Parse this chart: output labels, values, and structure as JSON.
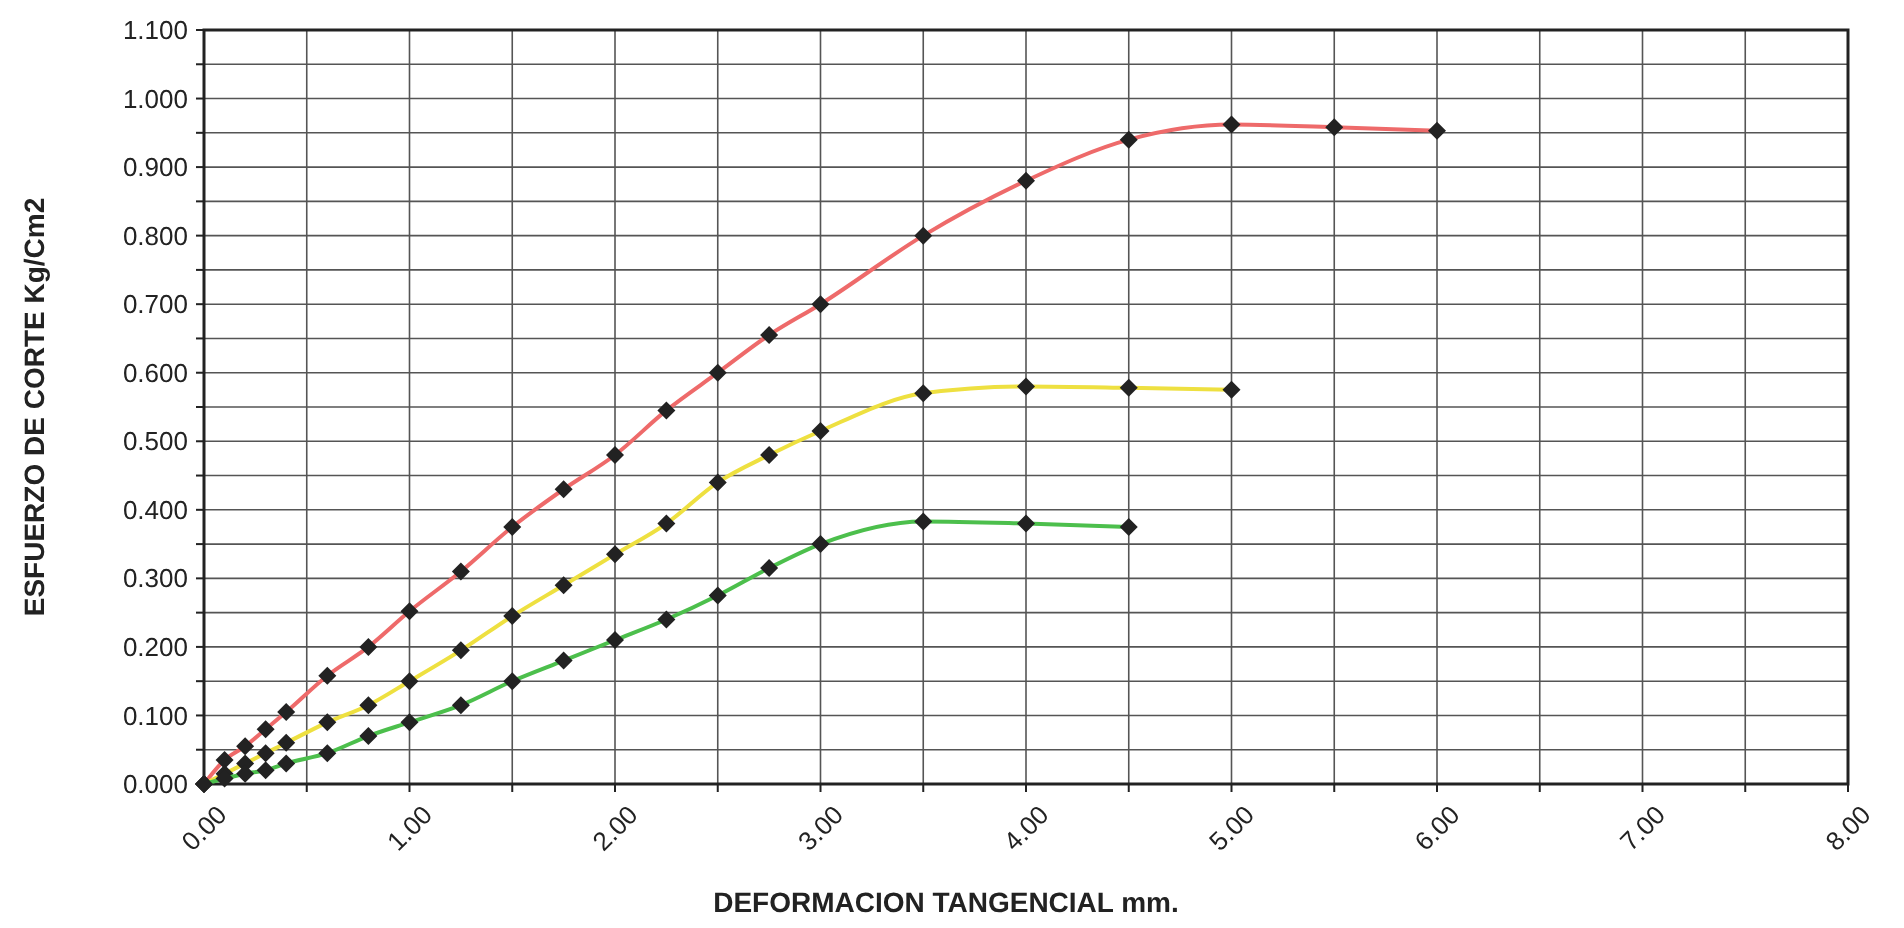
{
  "chart_data": {
    "type": "line",
    "xlabel": "DEFORMACION TANGENCIAL mm.",
    "ylabel": "ESFUERZO DE CORTE Kg/Cm2",
    "xlim": [
      0,
      8
    ],
    "ylim": [
      0,
      1.1
    ],
    "xticks": [
      {
        "value": 0,
        "label": "0.00"
      },
      {
        "value": 0.5,
        "label": null
      },
      {
        "value": 1,
        "label": "1.00"
      },
      {
        "value": 1.5,
        "label": null
      },
      {
        "value": 2,
        "label": "2.00"
      },
      {
        "value": 2.5,
        "label": null
      },
      {
        "value": 3,
        "label": "3.00"
      },
      {
        "value": 3.5,
        "label": null
      },
      {
        "value": 4,
        "label": "4.00"
      },
      {
        "value": 4.5,
        "label": null
      },
      {
        "value": 5,
        "label": "5.00"
      },
      {
        "value": 5.5,
        "label": null
      },
      {
        "value": 6,
        "label": "6.00"
      },
      {
        "value": 6.5,
        "label": null
      },
      {
        "value": 7,
        "label": "7.00"
      },
      {
        "value": 7.5,
        "label": null
      },
      {
        "value": 8,
        "label": "8.00"
      }
    ],
    "yticks": [
      {
        "value": 0,
        "label": "0.000"
      },
      {
        "value": 0.05,
        "label": null
      },
      {
        "value": 0.1,
        "label": "0.100"
      },
      {
        "value": 0.15,
        "label": null
      },
      {
        "value": 0.2,
        "label": "0.200"
      },
      {
        "value": 0.25,
        "label": null
      },
      {
        "value": 0.3,
        "label": "0.300"
      },
      {
        "value": 0.35,
        "label": null
      },
      {
        "value": 0.4,
        "label": "0.400"
      },
      {
        "value": 0.45,
        "label": null
      },
      {
        "value": 0.5,
        "label": "0.500"
      },
      {
        "value": 0.55,
        "label": null
      },
      {
        "value": 0.6,
        "label": "0.600"
      },
      {
        "value": 0.65,
        "label": null
      },
      {
        "value": 0.7,
        "label": "0.700"
      },
      {
        "value": 0.75,
        "label": null
      },
      {
        "value": 0.8,
        "label": "0.800"
      },
      {
        "value": 0.85,
        "label": null
      },
      {
        "value": 0.9,
        "label": "0.900"
      },
      {
        "value": 0.95,
        "label": null
      },
      {
        "value": 1,
        "label": "1.000"
      },
      {
        "value": 1.05,
        "label": null
      },
      {
        "value": 1.1,
        "label": "1.100"
      }
    ],
    "grid": true,
    "marker": "diamond",
    "line_style": "solid",
    "series": [
      {
        "color": "#ee6a6a",
        "x": [
          0,
          0.1,
          0.2,
          0.3,
          0.4,
          0.6,
          0.8,
          1,
          1.25,
          1.5,
          1.75,
          2,
          2.25,
          2.5,
          2.75,
          3,
          3.5,
          4,
          4.5,
          5,
          5.5,
          6
        ],
        "values": [
          0,
          0.035,
          0.055,
          0.08,
          0.105,
          0.158,
          0.2,
          0.252,
          0.31,
          0.375,
          0.43,
          0.48,
          0.545,
          0.6,
          0.655,
          0.7,
          0.8,
          0.88,
          0.94,
          0.962,
          0.958,
          0.953
        ]
      },
      {
        "color": "#eee040",
        "x": [
          0,
          0.1,
          0.2,
          0.3,
          0.4,
          0.6,
          0.8,
          1,
          1.25,
          1.5,
          1.75,
          2,
          2.25,
          2.5,
          2.75,
          3,
          3.5,
          4,
          4.5,
          5
        ],
        "values": [
          0,
          0.015,
          0.03,
          0.045,
          0.06,
          0.09,
          0.115,
          0.15,
          0.195,
          0.245,
          0.29,
          0.335,
          0.38,
          0.44,
          0.48,
          0.515,
          0.57,
          0.58,
          0.578,
          0.575
        ]
      },
      {
        "color": "#4cbf4c",
        "x": [
          0,
          0.1,
          0.2,
          0.3,
          0.4,
          0.6,
          0.8,
          1,
          1.25,
          1.5,
          1.75,
          2,
          2.25,
          2.5,
          2.75,
          3,
          3.5,
          4,
          4.5
        ],
        "values": [
          0,
          0.008,
          0.015,
          0.02,
          0.03,
          0.045,
          0.07,
          0.09,
          0.115,
          0.15,
          0.18,
          0.21,
          0.24,
          0.275,
          0.315,
          0.35,
          0.383,
          0.38,
          0.375
        ]
      }
    ]
  }
}
